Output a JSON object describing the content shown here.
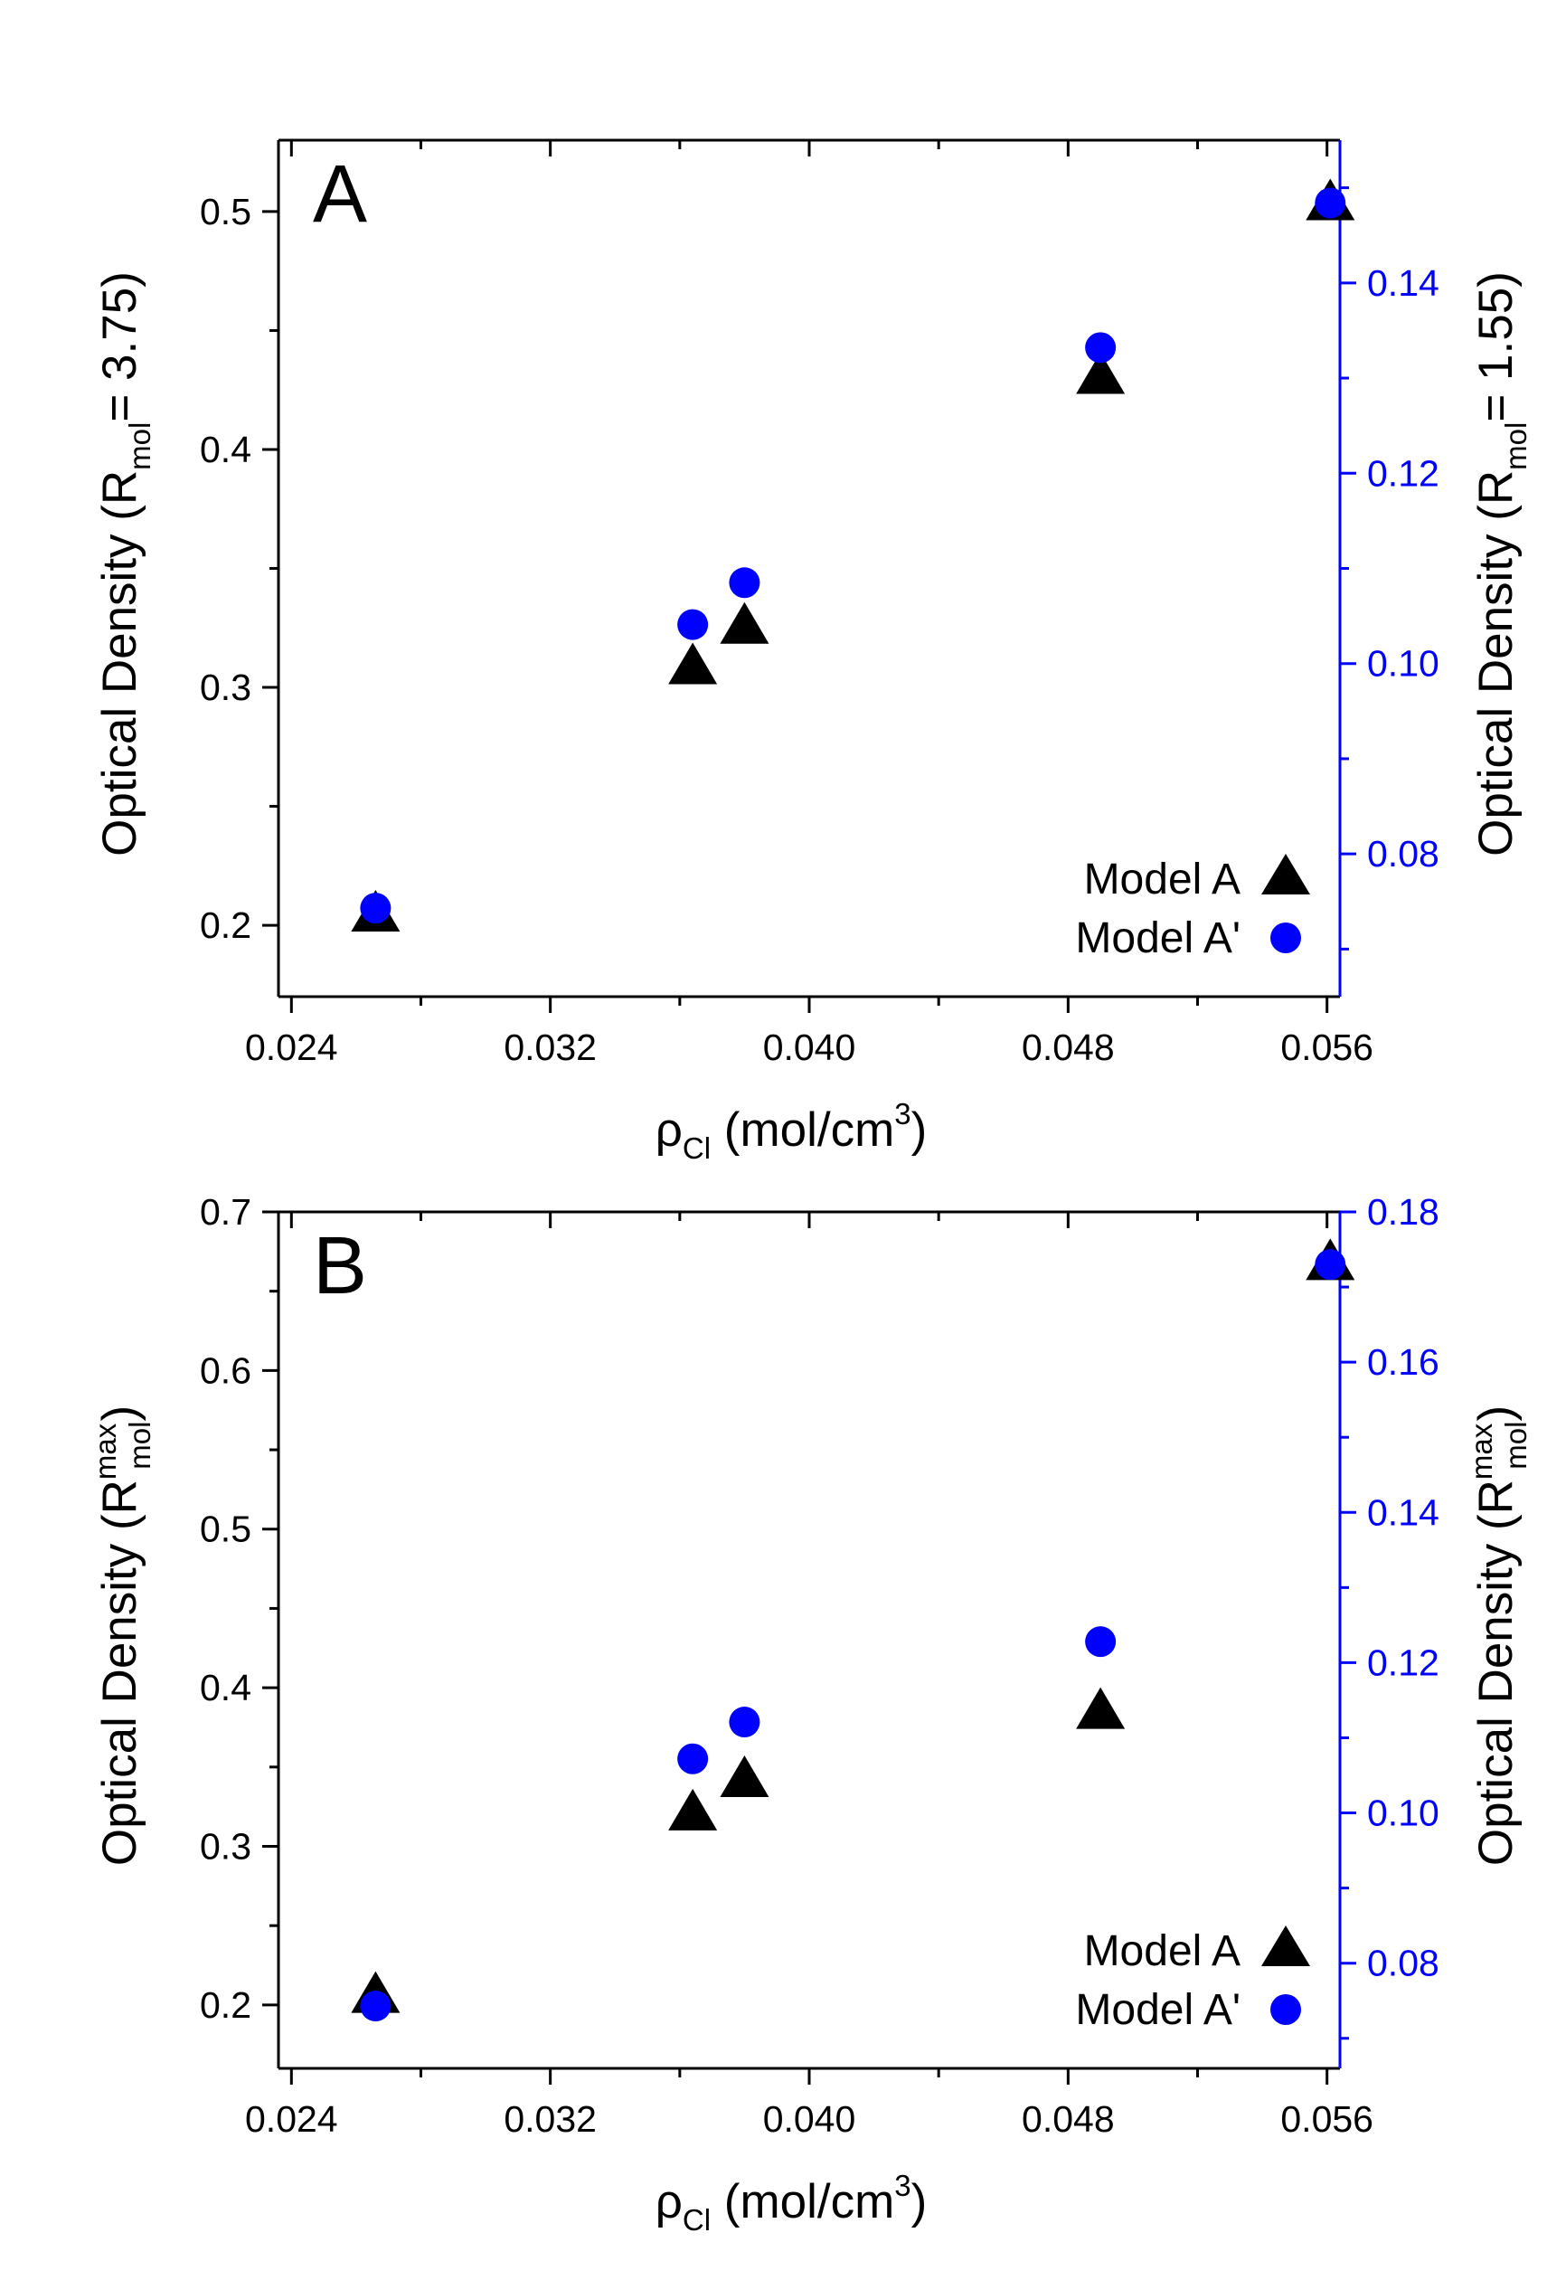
{
  "chart_data": [
    {
      "type": "scatter",
      "panel_label": "A",
      "xlabel": {
        "symbol": "ρ",
        "sub": "Cl",
        "unit_pre": " (mol/cm",
        "sup": "3",
        "unit_post": ")"
      },
      "ylabel_left": {
        "text": "Optical Density (R",
        "sub": "mol",
        "sup": "",
        "post": "= 3.75)"
      },
      "ylabel_right": {
        "text": "Optical Density (R",
        "sub": "mol",
        "sup": "",
        "post": "= 1.55)"
      },
      "xlim": [
        0.0236,
        0.0564
      ],
      "xticks": [
        "0.024",
        "0.032",
        "0.040",
        "0.048",
        "0.056"
      ],
      "ylim_left": [
        0.17,
        0.53
      ],
      "yticks_left": [
        "0.2",
        "0.3",
        "0.4",
        "0.5"
      ],
      "ylim_right": [
        0.065,
        0.155
      ],
      "yticks_right": [
        "0.08",
        "0.10",
        "0.12",
        "0.14"
      ],
      "series": [
        {
          "name": "Model A",
          "axis": "left",
          "marker": "triangle",
          "color": "#000000",
          "x": [
            0.0266,
            0.0364,
            0.038,
            0.049,
            0.0561
          ],
          "y": [
            0.204,
            0.308,
            0.325,
            0.43,
            0.503
          ]
        },
        {
          "name": "Model A'",
          "axis": "right",
          "marker": "circle",
          "color": "#0000ff",
          "x": [
            0.0266,
            0.0364,
            0.038,
            0.049,
            0.0561
          ],
          "y": [
            0.0743,
            0.1041,
            0.1085,
            0.1332,
            0.1484
          ]
        }
      ],
      "legend_placement": "bottom-right"
    },
    {
      "type": "scatter",
      "panel_label": "B",
      "xlabel": {
        "symbol": "ρ",
        "sub": "Cl",
        "unit_pre": " (mol/cm",
        "sup": "3",
        "unit_post": ")"
      },
      "ylabel_left": {
        "text": "Optical Density (R",
        "sub": "mol",
        "sup": "max",
        "post": ")"
      },
      "ylabel_right": {
        "text": "Optical Density (R",
        "sub": "mol",
        "sup": "max",
        "post": ")"
      },
      "xlim": [
        0.0236,
        0.0564
      ],
      "xticks": [
        "0.024",
        "0.032",
        "0.040",
        "0.048",
        "0.056"
      ],
      "ylim_left": [
        0.16,
        0.7
      ],
      "yticks_left": [
        "0.2",
        "0.3",
        "0.4",
        "0.5",
        "0.6",
        "0.7"
      ],
      "ylim_right": [
        0.066,
        0.18
      ],
      "yticks_right": [
        "0.08",
        "0.10",
        "0.12",
        "0.14",
        "0.16",
        "0.18"
      ],
      "series": [
        {
          "name": "Model A",
          "axis": "left",
          "marker": "triangle",
          "color": "#000000",
          "x": [
            0.0266,
            0.0364,
            0.038,
            0.049,
            0.0561
          ],
          "y": [
            0.205,
            0.32,
            0.341,
            0.384,
            0.667
          ]
        },
        {
          "name": "Model A'",
          "axis": "right",
          "marker": "circle",
          "color": "#0000ff",
          "x": [
            0.0266,
            0.0364,
            0.038,
            0.049,
            0.0561
          ],
          "y": [
            0.0743,
            0.1072,
            0.1121,
            0.1228,
            0.173
          ]
        }
      ],
      "legend_placement": "bottom-right"
    }
  ]
}
